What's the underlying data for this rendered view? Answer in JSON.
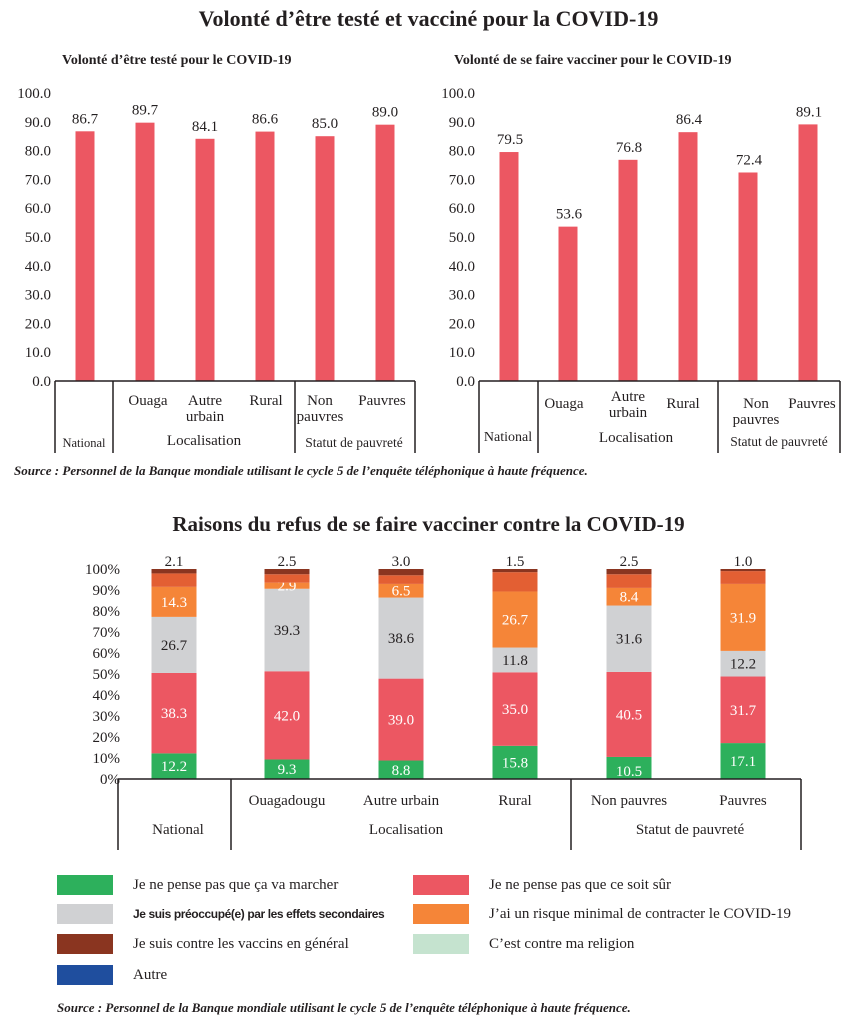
{
  "page": {
    "main_title": "Volonté d’être testé et vacciné pour la COVID-19",
    "source_top": "Source : Personnel de la Banque mondiale utilisant le cycle 5 de l’enquête téléphonique à haute fréquence.",
    "source_bottom": "Source : Personnel de la Banque mondiale utilisant le cycle 5 de l’enquête téléphonique à haute fréquence."
  },
  "colors": {
    "bar": "#ec5762",
    "green": "#2db05c",
    "red": "#ec5762",
    "gray": "#d0d1d3",
    "orange": "#f58538",
    "dark_orange": "#e35f33",
    "brown": "#8a3520",
    "light_green": "#c5e3cf",
    "blue": "#1f4e9e",
    "axis": "#231f20"
  },
  "chart_data": [
    {
      "type": "bar",
      "title": "Volonté d’être testé pour le COVID-19",
      "categories": [
        "National",
        "Ouaga",
        "Autre urbain",
        "Rural",
        "Non pauvres",
        "Pauvres"
      ],
      "category_lines": [
        [
          "National"
        ],
        [
          "Ouaga"
        ],
        [
          "Autre",
          "urbain"
        ],
        [
          "Rural"
        ],
        [
          "Non",
          "pauvres"
        ],
        [
          "Pauvres"
        ]
      ],
      "groups": [
        {
          "label": "",
          "members": [
            "National"
          ]
        },
        {
          "label": "Localisation",
          "members": [
            "Ouaga",
            "Autre urbain",
            "Rural"
          ]
        },
        {
          "label": "Statut de pauvreté",
          "members": [
            "Non pauvres",
            "Pauvres"
          ]
        }
      ],
      "values": [
        86.7,
        89.7,
        84.1,
        86.6,
        85.0,
        89.0
      ],
      "value_labels": [
        "86.7",
        "89.7",
        "84.1",
        "86.6",
        "85.0",
        "89.0"
      ],
      "yticks": [
        "0.0",
        "10.0",
        "20.0",
        "30.0",
        "40.0",
        "50.0",
        "60.0",
        "70.0",
        "80.0",
        "90.0",
        "100.0"
      ],
      "ylim": [
        0,
        100
      ],
      "xlabel": "",
      "ylabel": "",
      "grid": false
    },
    {
      "type": "bar",
      "title": "Volonté de se faire vacciner pour le COVID-19",
      "categories": [
        "National",
        "Ouaga",
        "Autre urbain",
        "Rural",
        "Non pauvres",
        "Pauvres"
      ],
      "category_lines": [
        [
          "National"
        ],
        [
          "Ouaga"
        ],
        [
          "Autre",
          "urbain"
        ],
        [
          "Rural"
        ],
        [
          "Non",
          "pauvres"
        ],
        [
          "Pauvres"
        ]
      ],
      "groups": [
        {
          "label": "",
          "members": [
            "National"
          ]
        },
        {
          "label": "Localisation",
          "members": [
            "Ouaga",
            "Autre urbain",
            "Rural"
          ]
        },
        {
          "label": "Statut de pauvreté",
          "members": [
            "Non pauvres",
            "Pauvres"
          ]
        }
      ],
      "values": [
        79.5,
        53.6,
        76.8,
        86.4,
        72.4,
        89.1
      ],
      "value_labels": [
        "79.5",
        "53.6",
        "76.8",
        "86.4",
        "72.4",
        "89.1"
      ],
      "yticks": [
        "0.0",
        "10.0",
        "20.0",
        "30.0",
        "40.0",
        "50.0",
        "60.0",
        "70.0",
        "80.0",
        "90.0",
        "100.0"
      ],
      "ylim": [
        0,
        100
      ],
      "xlabel": "",
      "ylabel": "",
      "grid": false
    },
    {
      "type": "bar",
      "stacked": true,
      "title": "Raisons du refus de se faire vacciner contre la COVID-19",
      "categories": [
        "National",
        "Ouagadougu",
        "Autre urbain",
        "Rural",
        "Non pauvres",
        "Pauvres"
      ],
      "groups": [
        {
          "label": "",
          "members": [
            "National"
          ]
        },
        {
          "label": "Localisation",
          "members": [
            "Ouagadougu",
            "Autre urbain",
            "Rural"
          ]
        },
        {
          "label": "Statut de pauvreté",
          "members": [
            "Non pauvres",
            "Pauvres"
          ]
        }
      ],
      "yticks": [
        "0%",
        "10%",
        "20%",
        "30%",
        "40%",
        "50%",
        "60%",
        "70%",
        "80%",
        "90%",
        "100%"
      ],
      "ylim": [
        0,
        100
      ],
      "series": [
        {
          "name": "Je ne pense pas que ça va marcher",
          "color_key": "green",
          "values": [
            12.2,
            9.3,
            8.8,
            15.8,
            10.5,
            17.1
          ],
          "labels": [
            "12.2",
            "9.3",
            "8.8",
            "15.8",
            "10.5",
            "17.1"
          ],
          "label_color": "#ffffff"
        },
        {
          "name": "Je ne pense pas que ce soit sûr",
          "color_key": "red",
          "values": [
            38.3,
            42.0,
            39.0,
            35.0,
            40.5,
            31.7
          ],
          "labels": [
            "38.3",
            "42.0",
            "39.0",
            "35.0",
            "40.5",
            "31.7"
          ],
          "label_color": "#ffffff"
        },
        {
          "name": "Je suis préoccupé(e) par les effets secondaires",
          "color_key": "gray",
          "values": [
            26.7,
            39.3,
            38.6,
            11.8,
            31.6,
            12.2
          ],
          "labels": [
            "26.7",
            "39.3",
            "38.6",
            "11.8",
            "31.6",
            "12.2"
          ],
          "label_color": "#231f20"
        },
        {
          "name": "J’ai un risque minimal de contracter le COVID-19",
          "color_key": "orange",
          "values": [
            14.3,
            2.9,
            6.5,
            26.7,
            8.4,
            31.9
          ],
          "labels": [
            "14.3",
            "2.9",
            "6.5",
            "26.7",
            "8.4",
            "31.9"
          ],
          "label_color": "#ffffff"
        },
        {
          "name": "",
          "color_key": "dark_orange",
          "values": [
            6.4,
            4.0,
            4.1,
            9.2,
            6.5,
            6.1
          ]
        },
        {
          "name": "Je suis contre les vaccins en général",
          "color_key": "brown",
          "values": [
            2.1,
            2.5,
            3.0,
            1.5,
            2.5,
            1.0
          ],
          "labels": [
            "2.1",
            "2.5",
            "3.0",
            "1.5",
            "2.5",
            "1.0"
          ],
          "label_position": "above"
        }
      ],
      "legend": [
        {
          "label": "Je ne pense pas que ça va marcher",
          "color_key": "green"
        },
        {
          "label": "Je ne pense pas que ce soit sûr",
          "color_key": "red"
        },
        {
          "label": "Je suis préoccupé(e) par les effets secondaires",
          "color_key": "gray"
        },
        {
          "label": "J’ai un risque minimal de contracter le COVID-19",
          "color_key": "orange"
        },
        {
          "label": "Je suis contre les vaccins en général",
          "color_key": "brown"
        },
        {
          "label": "C’est contre ma religion",
          "color_key": "light_green"
        },
        {
          "label": "Autre",
          "color_key": "blue"
        }
      ],
      "legend_position": "bottom",
      "xlabel": "",
      "ylabel": "",
      "grid": false
    }
  ]
}
